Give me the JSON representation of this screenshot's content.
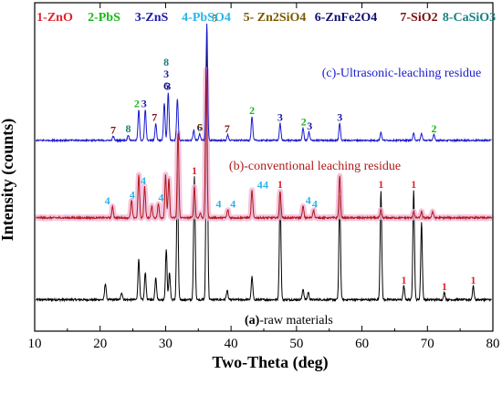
{
  "chart_data": {
    "type": "line",
    "xlabel": "Two-Theta (deg)",
    "ylabel": "Intensity (counts)",
    "xlim": [
      10,
      80
    ],
    "x_ticks": [
      "10",
      "20",
      "30",
      "40",
      "50",
      "60",
      "70",
      "80"
    ],
    "legend": [
      {
        "text": "1-ZnO",
        "color": "#e0242b"
      },
      {
        "text": "2-PbS",
        "color": "#18b818"
      },
      {
        "text": "3-ZnS",
        "color": "#1a1aa8"
      },
      {
        "text": "4-PbSO4",
        "color": "#2ab5e8"
      },
      {
        "text": "5- Zn2SiO4",
        "color": "#7a5a00"
      },
      {
        "text": "6-ZnFe2O4",
        "color": "#101070"
      },
      {
        "text": "7-SiO2",
        "color": "#7a1010"
      },
      {
        "text": "8-CaSiO3",
        "color": "#1a8080"
      }
    ],
    "series": [
      {
        "name": "(a)-raw materials",
        "label_prefix": "(a)",
        "label_suffix": "-raw materials",
        "color": "#000000",
        "baseline": 0,
        "peaks": [
          [
            20.8,
            18
          ],
          [
            23.3,
            8
          ],
          [
            25.9,
            45
          ],
          [
            26.9,
            30
          ],
          [
            28.5,
            25
          ],
          [
            30.1,
            55
          ],
          [
            30.6,
            30
          ],
          [
            31.8,
            140
          ],
          [
            34.4,
            135
          ],
          [
            36.3,
            290
          ],
          [
            39.4,
            10
          ],
          [
            43.2,
            25
          ],
          [
            47.5,
            120
          ],
          [
            51.0,
            12
          ],
          [
            51.8,
            8
          ],
          [
            56.6,
            115
          ],
          [
            62.9,
            120
          ],
          [
            66.4,
            15
          ],
          [
            67.9,
            120
          ],
          [
            69.1,
            85
          ],
          [
            72.6,
            8
          ],
          [
            77.0,
            15
          ]
        ],
        "peak_labels": [
          {
            "x": 34.4,
            "text": "1",
            "color": "#e0242b"
          },
          {
            "x": 47.5,
            "text": "1",
            "color": "#e0242b"
          },
          {
            "x": 56.6,
            "text": "1",
            "color": "#e0242b"
          },
          {
            "x": 62.9,
            "text": "1",
            "color": "#e0242b"
          },
          {
            "x": 67.9,
            "text": "1",
            "color": "#e0242b"
          },
          {
            "x": 69.1,
            "text": "1",
            "color": "#e0242b"
          },
          {
            "x": 66.4,
            "text": "1",
            "color": "#e0242b"
          },
          {
            "x": 72.6,
            "text": "1",
            "color": "#e0242b"
          },
          {
            "x": 77.0,
            "text": "1",
            "color": "#e0242b"
          }
        ]
      },
      {
        "name": "(b)-conventional leaching residue",
        "color": "#b01818",
        "baseline": 100,
        "peaks": [
          [
            21.9,
            14
          ],
          [
            24.8,
            22
          ],
          [
            25.9,
            55
          ],
          [
            26.8,
            40
          ],
          [
            27.9,
            15
          ],
          [
            28.9,
            18
          ],
          [
            30.0,
            55
          ],
          [
            30.5,
            50
          ],
          [
            31.9,
            110
          ],
          [
            34.4,
            40
          ],
          [
            35.3,
            6
          ],
          [
            36.2,
            190
          ],
          [
            39.5,
            10
          ],
          [
            43.2,
            35
          ],
          [
            47.5,
            35
          ],
          [
            51.0,
            15
          ],
          [
            52.6,
            10
          ],
          [
            56.6,
            55
          ],
          [
            62.9,
            10
          ],
          [
            67.9,
            8
          ],
          [
            69.1,
            8
          ],
          [
            70.8,
            8
          ]
        ],
        "peak_labels": [
          {
            "x": 21.1,
            "text": "4",
            "color": "#2ab5e8"
          },
          {
            "x": 24.9,
            "text": "4",
            "color": "#2ab5e8"
          },
          {
            "x": 26.6,
            "text": "4",
            "color": "#2ab5e8"
          },
          {
            "x": 29.3,
            "text": "4",
            "color": "#2ab5e8"
          },
          {
            "x": 38.1,
            "text": "4",
            "color": "#2ab5e8"
          },
          {
            "x": 40.3,
            "text": "4",
            "color": "#2ab5e8"
          },
          {
            "x": 44.4,
            "text": "4",
            "color": "#2ab5e8"
          },
          {
            "x": 45.3,
            "text": "4",
            "color": "#2ab5e8"
          },
          {
            "x": 51.8,
            "text": "4",
            "color": "#2ab5e8"
          },
          {
            "x": 52.8,
            "text": "4",
            "color": "#2ab5e8"
          }
        ]
      },
      {
        "name": "(c)-Ultrasonic-leaching residue",
        "color": "#1a1ad0",
        "baseline": 175,
        "peaks": [
          [
            22.0,
            6
          ],
          [
            24.3,
            8
          ],
          [
            25.9,
            45
          ],
          [
            26.9,
            45
          ],
          [
            28.5,
            25
          ],
          [
            29.8,
            55
          ],
          [
            30.4,
            70
          ],
          [
            31.8,
            60
          ],
          [
            34.3,
            15
          ],
          [
            35.2,
            10
          ],
          [
            36.3,
            170
          ],
          [
            39.5,
            8
          ],
          [
            43.2,
            35
          ],
          [
            47.5,
            25
          ],
          [
            51.0,
            18
          ],
          [
            51.9,
            12
          ],
          [
            56.6,
            25
          ],
          [
            62.9,
            12
          ],
          [
            67.9,
            10
          ],
          [
            69.1,
            10
          ],
          [
            71.0,
            8
          ]
        ],
        "peak_labels": [
          {
            "x": 22.0,
            "text": "7",
            "color": "#7a1010"
          },
          {
            "x": 24.3,
            "text": "8",
            "color": "#1a8080"
          },
          {
            "x": 25.6,
            "text": "2",
            "color": "#18b818"
          },
          {
            "x": 26.7,
            "text": "3",
            "color": "#1a1aa8"
          },
          {
            "x": 28.3,
            "text": "7",
            "color": "#7a1010"
          },
          {
            "x": 30.4,
            "text": "3",
            "color": "#1a1aa8"
          },
          {
            "x": 35.2,
            "text": "6",
            "color": "#101070"
          },
          {
            "x": 35.3,
            "text": "5",
            "color": "#7a5a00"
          },
          {
            "x": 37.5,
            "text": "5",
            "color": "#7a5a00"
          },
          {
            "x": 39.4,
            "text": "7",
            "color": "#7a1010"
          },
          {
            "x": 43.2,
            "text": "2",
            "color": "#18b818"
          },
          {
            "x": 47.5,
            "text": "3",
            "color": "#1a1aa8"
          },
          {
            "x": 51.1,
            "text": "2",
            "color": "#18b818"
          },
          {
            "x": 52.0,
            "text": "3",
            "color": "#1a1aa8"
          },
          {
            "x": 56.6,
            "text": "3",
            "color": "#1a1aa8"
          },
          {
            "x": 71.0,
            "text": "2",
            "color": "#18b818"
          }
        ],
        "stacked_labels": [
          {
            "x": 30.1,
            "text": "8",
            "color": "#1a8080"
          },
          {
            "x": 30.1,
            "text": "3",
            "color": "#1a1aa8"
          },
          {
            "x": 30.1,
            "text": "6",
            "color": "#101070"
          }
        ]
      }
    ]
  }
}
